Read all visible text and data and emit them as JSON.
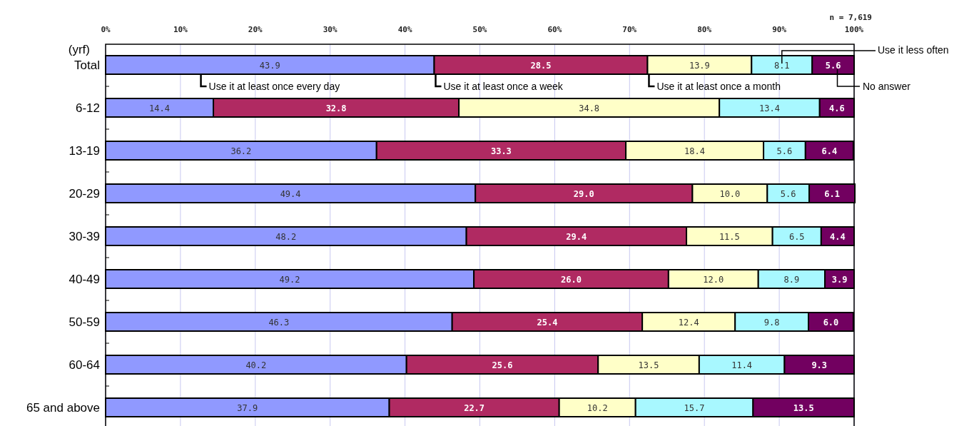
{
  "chart_data": {
    "type": "bar",
    "orientation": "horizontal",
    "stacked": true,
    "ylabel": "(yrf)",
    "categories": [
      "Total",
      "6-12",
      "13-19",
      "20-29",
      "30-39",
      "40-49",
      "50-59",
      "60-64",
      "65 and above"
    ],
    "series": [
      {
        "name": "Use it at least once every day",
        "color": "#9099ff",
        "values": [
          43.9,
          14.4,
          36.2,
          49.4,
          48.2,
          49.2,
          46.3,
          40.2,
          37.9
        ],
        "value_labels": [
          "43.9",
          "14.4",
          "36.2",
          "49.4",
          "48.2",
          "49.2",
          "46.3",
          "40.2",
          "37.9"
        ]
      },
      {
        "name": "Use it at least once a week",
        "color": "#b02a62",
        "values": [
          28.5,
          32.8,
          33.3,
          29.0,
          29.4,
          26.0,
          25.4,
          25.6,
          22.7
        ],
        "value_labels": [
          "28.5",
          "32.8",
          "33.3",
          "29.0",
          "29.4",
          "26.0",
          "25.4",
          "25.6",
          "22.7"
        ]
      },
      {
        "name": "Use it at least once a month",
        "color": "#ffffc8",
        "values": [
          13.9,
          34.8,
          18.4,
          10.0,
          11.5,
          12.0,
          12.4,
          13.5,
          10.2
        ],
        "value_labels": [
          "13.9",
          "34.8",
          "18.4",
          "10.0",
          "11.5",
          "12.0",
          "12.4",
          "13.5",
          "10.2"
        ]
      },
      {
        "name": "Use it less often",
        "color": "#a8f8ff",
        "values": [
          8.1,
          13.4,
          5.6,
          5.6,
          6.5,
          8.9,
          9.8,
          11.4,
          15.7
        ],
        "value_labels": [
          "8.1",
          "13.4",
          "5.6",
          "5.6",
          "6.5",
          "8.9",
          "9.8",
          "11.4",
          "15.7"
        ]
      },
      {
        "name": "No answer",
        "color": "#720060",
        "values": [
          5.6,
          4.6,
          6.4,
          6.1,
          4.4,
          3.9,
          6.0,
          9.3,
          13.5
        ],
        "value_labels": [
          "5.6",
          "4.6",
          "6.4",
          "6.1",
          "4.4",
          "3.9",
          "6.0",
          "9.3",
          "13.5"
        ]
      }
    ],
    "xlim": [
      0,
      100
    ],
    "xticks": [
      {
        "value": 0,
        "label": "0%"
      },
      {
        "value": 10,
        "label": "10%"
      },
      {
        "value": 20,
        "label": "20%"
      },
      {
        "value": 30,
        "label": "30%"
      },
      {
        "value": 40,
        "label": "40%"
      },
      {
        "value": 50,
        "label": "50%"
      },
      {
        "value": 60,
        "label": "60%"
      },
      {
        "value": 70,
        "label": "70%"
      },
      {
        "value": 80,
        "label": "80%"
      },
      {
        "value": 90,
        "label": "90%"
      },
      {
        "value": 100,
        "label": "100%"
      }
    ],
    "grid": "x",
    "legend": "top",
    "annotations": [
      "n = 7,619"
    ]
  }
}
